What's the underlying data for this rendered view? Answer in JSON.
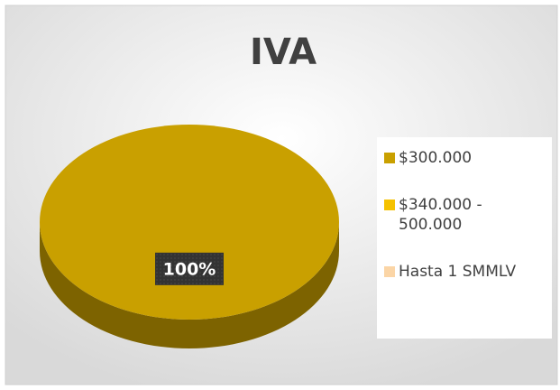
{
  "chart_data": {
    "type": "pie",
    "title": "IVA",
    "categories": [
      "$300.000",
      "$340.000 - 500.000",
      "Hasta 1 SMMLV"
    ],
    "values": [
      100,
      0,
      0
    ],
    "value_labels": [
      "100%",
      null,
      null
    ],
    "colors": [
      "#c9a000",
      "#f5c200",
      "#fbd5a6"
    ],
    "legend": "right"
  }
}
